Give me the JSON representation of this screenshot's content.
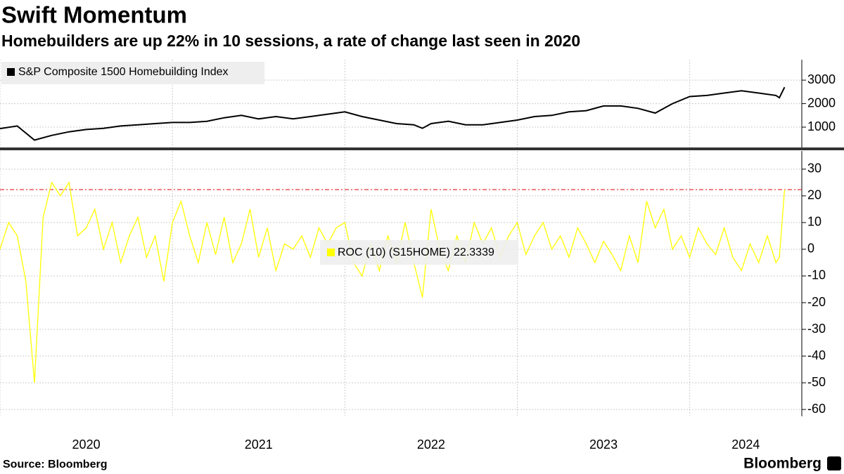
{
  "title": "Swift Momentum",
  "subtitle": "Homebuilders are up 22% in 10 sessions, a rate of change last seen in 2020",
  "source": "Source: Bloomberg",
  "logo": "Bloomberg",
  "chart_data": [
    {
      "type": "line",
      "x": [
        2020.0,
        2020.1,
        2020.2,
        2020.3,
        2020.4,
        2020.5,
        2020.6,
        2020.7,
        2020.8,
        2020.9,
        2021.0,
        2021.1,
        2021.2,
        2021.3,
        2021.4,
        2021.5,
        2021.6,
        2021.7,
        2021.8,
        2021.9,
        2022.0,
        2022.1,
        2022.2,
        2022.3,
        2022.4,
        2022.45,
        2022.5,
        2022.6,
        2022.7,
        2022.8,
        2022.9,
        2023.0,
        2023.1,
        2023.2,
        2023.3,
        2023.4,
        2023.5,
        2023.6,
        2023.7,
        2023.8,
        2023.9,
        2024.0,
        2024.1,
        2024.2,
        2024.3,
        2024.4,
        2024.5,
        2024.52,
        2024.55
      ],
      "series": [
        {
          "name": "S&P Composite 1500 Homebuilding Index",
          "color": "#000000",
          "values": [
            940,
            1050,
            450,
            650,
            800,
            900,
            950,
            1050,
            1100,
            1150,
            1200,
            1200,
            1250,
            1400,
            1500,
            1350,
            1450,
            1350,
            1450,
            1550,
            1650,
            1450,
            1300,
            1150,
            1100,
            950,
            1150,
            1250,
            1100,
            1100,
            1200,
            1300,
            1450,
            1500,
            1650,
            1700,
            1900,
            1900,
            1800,
            1600,
            2000,
            2300,
            2350,
            2450,
            2550,
            2450,
            2350,
            2250,
            2700
          ]
        }
      ],
      "xlim": [
        2020,
        2024.65
      ],
      "xticks": [
        2020,
        2021,
        2022,
        2023,
        2024
      ],
      "ylim": [
        135,
        3870
      ],
      "yticks": [
        1000,
        2000,
        3000
      ],
      "grid": true
    },
    {
      "type": "line",
      "x": [
        2020.0,
        2020.05,
        2020.1,
        2020.15,
        2020.2,
        2020.25,
        2020.3,
        2020.35,
        2020.4,
        2020.45,
        2020.5,
        2020.55,
        2020.6,
        2020.65,
        2020.7,
        2020.75,
        2020.8,
        2020.85,
        2020.9,
        2020.95,
        2021.0,
        2021.05,
        2021.1,
        2021.15,
        2021.2,
        2021.25,
        2021.3,
        2021.35,
        2021.4,
        2021.45,
        2021.5,
        2021.55,
        2021.6,
        2021.65,
        2021.7,
        2021.75,
        2021.8,
        2021.85,
        2021.9,
        2021.95,
        2022.0,
        2022.05,
        2022.1,
        2022.15,
        2022.2,
        2022.25,
        2022.3,
        2022.35,
        2022.4,
        2022.45,
        2022.5,
        2022.55,
        2022.6,
        2022.65,
        2022.7,
        2022.75,
        2022.8,
        2022.85,
        2022.9,
        2022.95,
        2023.0,
        2023.05,
        2023.1,
        2023.15,
        2023.2,
        2023.25,
        2023.3,
        2023.35,
        2023.4,
        2023.45,
        2023.5,
        2023.55,
        2023.6,
        2023.65,
        2023.7,
        2023.75,
        2023.8,
        2023.85,
        2023.9,
        2023.95,
        2024.0,
        2024.05,
        2024.1,
        2024.15,
        2024.2,
        2024.25,
        2024.3,
        2024.35,
        2024.4,
        2024.45,
        2024.5,
        2024.52,
        2024.55
      ],
      "series": [
        {
          "name": "ROC (10) (S15HOME)",
          "color": "#ffff00",
          "values": [
            0,
            10,
            5,
            -12,
            -50,
            12,
            25,
            20,
            25,
            5,
            8,
            15,
            0,
            10,
            -5,
            5,
            12,
            -3,
            5,
            -12,
            10,
            18,
            5,
            -5,
            10,
            -2,
            12,
            -5,
            2,
            15,
            -3,
            8,
            -8,
            2,
            0,
            5,
            -3,
            8,
            2,
            8,
            10,
            -5,
            -10,
            2,
            -8,
            5,
            -5,
            10,
            -5,
            -18,
            15,
            0,
            -8,
            5,
            -5,
            10,
            2,
            8,
            -3,
            5,
            10,
            -2,
            5,
            10,
            0,
            5,
            -3,
            8,
            2,
            -5,
            3,
            -2,
            -8,
            5,
            -5,
            18,
            8,
            15,
            0,
            5,
            -3,
            8,
            2,
            -2,
            8,
            -3,
            -8,
            2,
            -5,
            5,
            -5,
            -3,
            22.3339
          ]
        }
      ],
      "last_value": 22.3339,
      "xlim": [
        2020,
        2024.65
      ],
      "xticks": [
        2020,
        2021,
        2022,
        2023,
        2024
      ],
      "ylim": [
        -62.6,
        36.8
      ],
      "yticks": [
        -60,
        -50,
        -40,
        -30,
        -20,
        -10,
        0,
        10,
        20,
        30
      ],
      "grid": true
    }
  ]
}
